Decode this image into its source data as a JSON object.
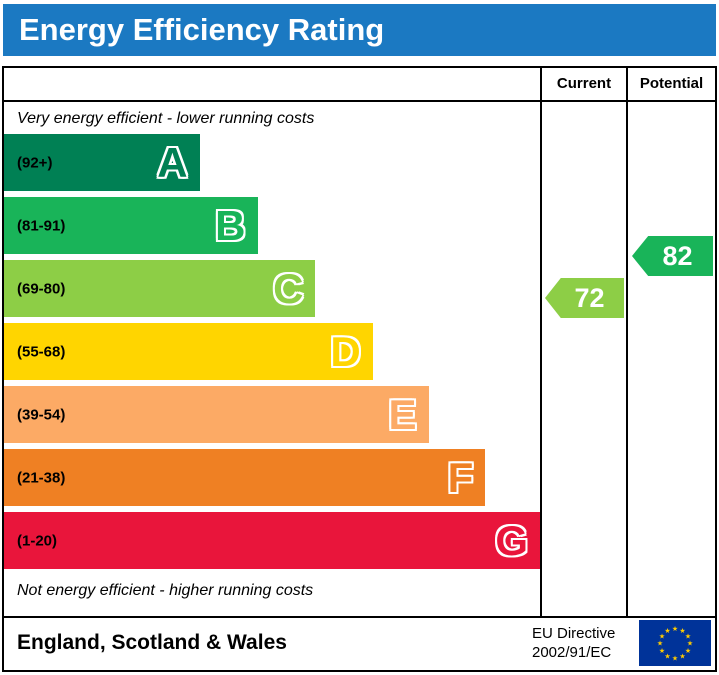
{
  "title": "Energy Efficiency Rating",
  "title_bar_color": "#1b79c2",
  "header": {
    "current_label": "Current",
    "potential_label": "Potential"
  },
  "top_note": "Very energy efficient - lower running costs",
  "bottom_note": "Not energy efficient - higher running costs",
  "chart_data": {
    "type": "bar",
    "title": "Energy Efficiency Rating",
    "bands": [
      {
        "letter": "A",
        "range": "(92+)",
        "color": "#008054",
        "width_pct": 36.5
      },
      {
        "letter": "B",
        "range": "(81-91)",
        "color": "#19b459",
        "width_pct": 47.3
      },
      {
        "letter": "C",
        "range": "(69-80)",
        "color": "#8dce46",
        "width_pct": 58.1
      },
      {
        "letter": "D",
        "range": "(55-68)",
        "color": "#ffd500",
        "width_pct": 68.8
      },
      {
        "letter": "E",
        "range": "(39-54)",
        "color": "#fcaa65",
        "width_pct": 79.2
      },
      {
        "letter": "F",
        "range": "(21-38)",
        "color": "#ef8023",
        "width_pct": 89.8
      },
      {
        "letter": "G",
        "range": "(1-20)",
        "color": "#e9153b",
        "width_pct": 100
      }
    ],
    "current": {
      "value": 72,
      "band": "C",
      "color": "#8dce46"
    },
    "potential": {
      "value": 82,
      "band": "B",
      "color": "#19b459"
    }
  },
  "footer": {
    "region": "England, Scotland & Wales",
    "directive_line1": "EU Directive",
    "directive_line2": "2002/91/EC",
    "flag_blue": "#003399",
    "flag_star_color": "#ffcc00"
  }
}
